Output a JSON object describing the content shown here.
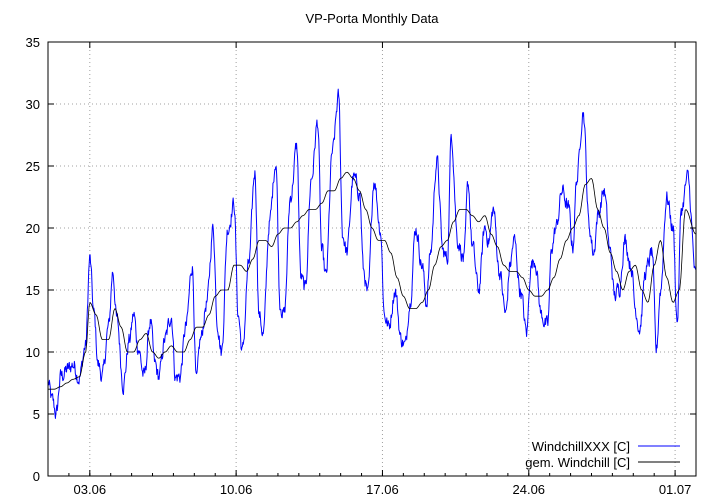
{
  "chart_data": {
    "type": "line",
    "title": "VP-Porta Monthly Data",
    "xlabel": "",
    "ylabel": "",
    "ylim": [
      0,
      35
    ],
    "xlim": [
      1.0,
      32.0
    ],
    "yticks": [
      "0",
      "5",
      "10",
      "15",
      "20",
      "25",
      "30",
      "35"
    ],
    "ytick_values": [
      0,
      5,
      10,
      15,
      20,
      25,
      30,
      35
    ],
    "xticks": [
      "03.06",
      "10.06",
      "17.06",
      "24.06",
      "01.07"
    ],
    "xtick_values": [
      3.0,
      10.0,
      17.0,
      24.0,
      31.0
    ],
    "grid": true,
    "legend_position": "bottom-right",
    "series": [
      {
        "name": "WindchillXXX [C]",
        "color": "#0000ff",
        "style": "noisy",
        "x": [
          1.0,
          1.2,
          1.4,
          1.6,
          1.9,
          2.2,
          2.5,
          2.8,
          3.0,
          3.2,
          3.4,
          3.6,
          3.9,
          4.1,
          4.3,
          4.6,
          4.9,
          5.1,
          5.3,
          5.6,
          5.9,
          6.1,
          6.3,
          6.6,
          6.9,
          7.1,
          7.3,
          7.6,
          7.9,
          8.1,
          8.3,
          8.6,
          8.9,
          9.1,
          9.3,
          9.6,
          9.9,
          10.1,
          10.3,
          10.6,
          10.9,
          11.1,
          11.3,
          11.6,
          11.9,
          12.1,
          12.3,
          12.6,
          12.9,
          13.1,
          13.3,
          13.6,
          13.9,
          14.1,
          14.3,
          14.6,
          14.9,
          15.1,
          15.3,
          15.6,
          15.9,
          16.1,
          16.3,
          16.6,
          16.9,
          17.1,
          17.3,
          17.6,
          17.9,
          18.1,
          18.3,
          18.6,
          18.9,
          19.1,
          19.3,
          19.6,
          19.9,
          20.1,
          20.3,
          20.6,
          20.9,
          21.1,
          21.3,
          21.6,
          21.9,
          22.1,
          22.3,
          22.6,
          22.9,
          23.1,
          23.3,
          23.6,
          23.9,
          24.1,
          24.3,
          24.6,
          24.9,
          25.1,
          25.3,
          25.6,
          25.9,
          26.1,
          26.3,
          26.6,
          26.9,
          27.1,
          27.3,
          27.6,
          27.9,
          28.1,
          28.3,
          28.6,
          28.9,
          29.1,
          29.3,
          29.6,
          29.9,
          30.1,
          30.3,
          30.6,
          30.9,
          31.1,
          31.3,
          31.6,
          32.0
        ],
        "y": [
          7.5,
          6.0,
          5.0,
          8.0,
          8.5,
          9.0,
          8.0,
          10.5,
          17.5,
          13.0,
          9.0,
          8.0,
          12.0,
          16.5,
          12.5,
          7.5,
          11.0,
          13.0,
          10.5,
          8.0,
          12.5,
          9.0,
          8.0,
          11.0,
          13.0,
          8.0,
          8.0,
          12.0,
          17.0,
          7.5,
          11.0,
          14.0,
          20.0,
          12.5,
          10.0,
          20.0,
          22.0,
          13.0,
          10.0,
          17.0,
          24.5,
          13.0,
          11.5,
          20.5,
          25.5,
          14.0,
          13.0,
          22.5,
          26.5,
          16.0,
          15.0,
          24.0,
          28.5,
          18.0,
          16.0,
          26.0,
          30.5,
          19.5,
          18.0,
          24.0,
          23.0,
          16.5,
          14.5,
          24.0,
          20.0,
          13.0,
          12.0,
          15.0,
          11.0,
          10.5,
          14.0,
          20.0,
          17.0,
          14.0,
          18.0,
          25.5,
          18.0,
          17.5,
          27.5,
          19.0,
          17.5,
          23.5,
          18.5,
          15.0,
          20.0,
          19.0,
          21.5,
          16.5,
          13.0,
          17.0,
          19.0,
          15.0,
          11.5,
          17.0,
          17.5,
          13.0,
          12.0,
          18.5,
          20.0,
          23.0,
          21.5,
          18.5,
          24.0,
          29.5,
          20.0,
          18.0,
          21.0,
          23.0,
          18.0,
          14.5,
          15.0,
          19.0,
          17.0,
          13.5,
          12.0,
          16.5,
          18.0,
          10.0,
          15.0,
          22.5,
          20.0,
          12.5,
          21.5,
          24.0,
          16.0
        ]
      },
      {
        "name": "gem. Windchill [C]",
        "color": "#000000",
        "style": "smooth",
        "x": [
          1.0,
          1.3,
          1.6,
          1.9,
          2.2,
          2.5,
          2.8,
          3.0,
          3.3,
          3.6,
          3.9,
          4.2,
          4.5,
          4.8,
          5.1,
          5.4,
          5.7,
          6.0,
          6.3,
          6.6,
          6.9,
          7.2,
          7.5,
          7.8,
          8.1,
          8.4,
          8.7,
          9.0,
          9.3,
          9.6,
          9.9,
          10.2,
          10.5,
          10.8,
          11.1,
          11.4,
          11.7,
          12.0,
          12.3,
          12.6,
          12.9,
          13.2,
          13.5,
          13.8,
          14.1,
          14.4,
          14.7,
          15.0,
          15.3,
          15.6,
          15.9,
          16.2,
          16.5,
          16.8,
          17.1,
          17.4,
          17.7,
          18.0,
          18.3,
          18.6,
          18.9,
          19.2,
          19.5,
          19.8,
          20.1,
          20.4,
          20.7,
          21.0,
          21.3,
          21.6,
          21.9,
          22.2,
          22.5,
          22.8,
          23.1,
          23.4,
          23.7,
          24.0,
          24.3,
          24.6,
          24.9,
          25.2,
          25.5,
          25.8,
          26.1,
          26.4,
          26.7,
          27.0,
          27.3,
          27.6,
          27.9,
          28.2,
          28.5,
          28.8,
          29.1,
          29.4,
          29.7,
          30.0,
          30.3,
          30.6,
          30.9,
          31.2,
          31.5,
          32.0
        ],
        "y": [
          7.0,
          7.0,
          7.2,
          7.5,
          7.8,
          8.0,
          10.0,
          14.0,
          13.0,
          11.0,
          11.0,
          13.5,
          12.0,
          10.0,
          10.0,
          11.0,
          11.5,
          10.0,
          9.5,
          10.0,
          10.5,
          10.0,
          10.0,
          11.0,
          12.0,
          12.0,
          13.0,
          14.5,
          15.0,
          15.0,
          17.0,
          17.0,
          16.5,
          17.5,
          19.0,
          19.0,
          18.5,
          19.5,
          20.0,
          20.0,
          20.5,
          21.0,
          21.5,
          21.5,
          22.0,
          23.0,
          23.0,
          24.0,
          24.5,
          24.0,
          23.0,
          21.5,
          20.0,
          19.0,
          19.0,
          18.0,
          16.0,
          14.5,
          13.5,
          13.5,
          14.0,
          15.0,
          17.0,
          18.5,
          19.0,
          20.5,
          21.5,
          21.5,
          21.0,
          20.5,
          21.0,
          19.5,
          18.5,
          17.0,
          16.5,
          16.5,
          16.0,
          15.0,
          14.5,
          14.5,
          15.0,
          16.0,
          17.5,
          19.0,
          20.0,
          21.0,
          23.5,
          24.0,
          21.5,
          20.0,
          18.0,
          16.5,
          15.0,
          16.5,
          17.0,
          15.0,
          14.0,
          17.0,
          19.0,
          16.0,
          14.0,
          15.0,
          21.5,
          19.5
        ]
      }
    ]
  }
}
